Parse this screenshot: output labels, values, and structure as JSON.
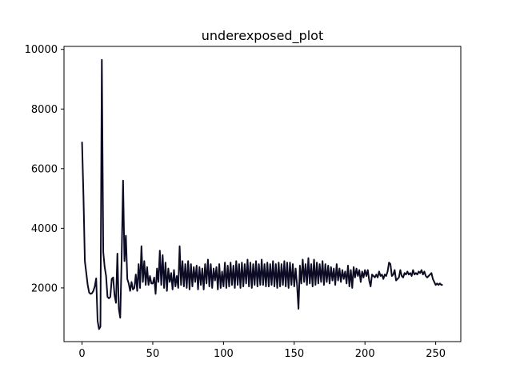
{
  "chart_data": {
    "type": "line",
    "title": "underexposed_plot",
    "xlabel": "",
    "ylabel": "",
    "xlim": [
      -12.75,
      267.75
    ],
    "ylim": [
      200,
      10100
    ],
    "x_ticks": [
      0,
      50,
      100,
      150,
      200,
      250
    ],
    "y_ticks": [
      2000,
      4000,
      6000,
      8000,
      10000
    ],
    "grid": false,
    "legend": "none",
    "series": [
      {
        "color": "#0b0b24",
        "points": [
          [
            0,
            6900
          ],
          [
            1,
            5100
          ],
          [
            2,
            2900
          ],
          [
            3,
            2500
          ],
          [
            4,
            2100
          ],
          [
            5,
            1850
          ],
          [
            6,
            1800
          ],
          [
            7,
            1820
          ],
          [
            8,
            1900
          ],
          [
            9,
            2050
          ],
          [
            10,
            2320
          ],
          [
            11,
            900
          ],
          [
            12,
            620
          ],
          [
            13,
            700
          ],
          [
            14,
            9650
          ],
          [
            15,
            3200
          ],
          [
            16,
            2700
          ],
          [
            17,
            2400
          ],
          [
            18,
            1700
          ],
          [
            19,
            1650
          ],
          [
            20,
            1700
          ],
          [
            21,
            2300
          ],
          [
            22,
            2350
          ],
          [
            23,
            1750
          ],
          [
            24,
            1500
          ],
          [
            25,
            3150
          ],
          [
            26,
            1300
          ],
          [
            27,
            1000
          ],
          [
            28,
            3000
          ],
          [
            29,
            5600
          ],
          [
            30,
            2900
          ],
          [
            31,
            3750
          ],
          [
            32,
            2300
          ],
          [
            33,
            2150
          ],
          [
            34,
            1900
          ],
          [
            35,
            2200
          ],
          [
            36,
            1950
          ],
          [
            37,
            2000
          ],
          [
            38,
            2450
          ],
          [
            39,
            1900
          ],
          [
            40,
            2800
          ],
          [
            41,
            2000
          ],
          [
            42,
            3400
          ],
          [
            43,
            2200
          ],
          [
            44,
            2900
          ],
          [
            45,
            2100
          ],
          [
            46,
            2700
          ],
          [
            47,
            2100
          ],
          [
            48,
            2400
          ],
          [
            49,
            2150
          ],
          [
            50,
            2150
          ],
          [
            51,
            2350
          ],
          [
            52,
            1800
          ],
          [
            53,
            2650
          ],
          [
            54,
            2200
          ],
          [
            55,
            3250
          ],
          [
            56,
            2100
          ],
          [
            57,
            3100
          ],
          [
            58,
            2000
          ],
          [
            59,
            2850
          ],
          [
            60,
            1900
          ],
          [
            61,
            2650
          ],
          [
            62,
            2200
          ],
          [
            63,
            2500
          ],
          [
            64,
            1950
          ],
          [
            65,
            2600
          ],
          [
            66,
            2050
          ],
          [
            67,
            2400
          ],
          [
            68,
            2000
          ],
          [
            69,
            3400
          ],
          [
            70,
            2100
          ],
          [
            71,
            2900
          ],
          [
            72,
            2050
          ],
          [
            73,
            2800
          ],
          [
            74,
            2000
          ],
          [
            75,
            2900
          ],
          [
            76,
            1950
          ],
          [
            77,
            2800
          ],
          [
            78,
            2050
          ],
          [
            79,
            2700
          ],
          [
            80,
            2200
          ],
          [
            81,
            2750
          ],
          [
            82,
            1950
          ],
          [
            83,
            2700
          ],
          [
            84,
            2100
          ],
          [
            85,
            2650
          ],
          [
            86,
            1950
          ],
          [
            87,
            2800
          ],
          [
            88,
            2150
          ],
          [
            89,
            2950
          ],
          [
            90,
            2050
          ],
          [
            91,
            2800
          ],
          [
            92,
            2000
          ],
          [
            93,
            2650
          ],
          [
            94,
            2250
          ],
          [
            95,
            2700
          ],
          [
            96,
            1950
          ],
          [
            97,
            2800
          ],
          [
            98,
            2000
          ],
          [
            99,
            2550
          ],
          [
            100,
            2050
          ],
          [
            101,
            2850
          ],
          [
            102,
            2000
          ],
          [
            103,
            2750
          ],
          [
            104,
            2050
          ],
          [
            105,
            2850
          ],
          [
            106,
            2100
          ],
          [
            107,
            2750
          ],
          [
            108,
            2000
          ],
          [
            109,
            2900
          ],
          [
            110,
            2100
          ],
          [
            111,
            2800
          ],
          [
            112,
            2000
          ],
          [
            113,
            2850
          ],
          [
            114,
            2050
          ],
          [
            115,
            2800
          ],
          [
            116,
            2150
          ],
          [
            117,
            2950
          ],
          [
            118,
            2050
          ],
          [
            119,
            2850
          ],
          [
            120,
            2000
          ],
          [
            121,
            2800
          ],
          [
            122,
            2100
          ],
          [
            123,
            2900
          ],
          [
            124,
            2050
          ],
          [
            125,
            2800
          ],
          [
            126,
            2100
          ],
          [
            127,
            2950
          ],
          [
            128,
            2100
          ],
          [
            129,
            2800
          ],
          [
            130,
            2050
          ],
          [
            131,
            2850
          ],
          [
            132,
            2050
          ],
          [
            133,
            2800
          ],
          [
            134,
            2100
          ],
          [
            135,
            2900
          ],
          [
            136,
            2050
          ],
          [
            137,
            2800
          ],
          [
            138,
            2000
          ],
          [
            139,
            2850
          ],
          [
            140,
            2050
          ],
          [
            141,
            2800
          ],
          [
            142,
            2100
          ],
          [
            143,
            2900
          ],
          [
            144,
            2050
          ],
          [
            145,
            2850
          ],
          [
            146,
            2000
          ],
          [
            147,
            2850
          ],
          [
            148,
            2100
          ],
          [
            149,
            2800
          ],
          [
            150,
            2050
          ],
          [
            151,
            2650
          ],
          [
            152,
            2100
          ],
          [
            153,
            1300
          ],
          [
            154,
            2750
          ],
          [
            155,
            2150
          ],
          [
            156,
            2950
          ],
          [
            157,
            2200
          ],
          [
            158,
            2800
          ],
          [
            159,
            2100
          ],
          [
            160,
            3000
          ],
          [
            161,
            2150
          ],
          [
            162,
            2800
          ],
          [
            163,
            2050
          ],
          [
            164,
            2950
          ],
          [
            165,
            2100
          ],
          [
            166,
            2850
          ],
          [
            167,
            2150
          ],
          [
            168,
            2800
          ],
          [
            169,
            2200
          ],
          [
            170,
            2900
          ],
          [
            171,
            2100
          ],
          [
            172,
            2800
          ],
          [
            173,
            2200
          ],
          [
            174,
            2750
          ],
          [
            175,
            2150
          ],
          [
            176,
            2700
          ],
          [
            177,
            2250
          ],
          [
            178,
            2650
          ],
          [
            179,
            2100
          ],
          [
            180,
            2800
          ],
          [
            181,
            2250
          ],
          [
            182,
            2650
          ],
          [
            183,
            2200
          ],
          [
            184,
            2600
          ],
          [
            185,
            2300
          ],
          [
            186,
            2550
          ],
          [
            187,
            2150
          ],
          [
            188,
            2750
          ],
          [
            189,
            2050
          ],
          [
            190,
            2600
          ],
          [
            191,
            2000
          ],
          [
            192,
            2700
          ],
          [
            193,
            2350
          ],
          [
            194,
            2650
          ],
          [
            195,
            2400
          ],
          [
            196,
            2600
          ],
          [
            197,
            2200
          ],
          [
            198,
            2550
          ],
          [
            199,
            2350
          ],
          [
            200,
            2600
          ],
          [
            201,
            2400
          ],
          [
            202,
            2600
          ],
          [
            203,
            2250
          ],
          [
            204,
            2050
          ],
          [
            205,
            2450
          ],
          [
            206,
            2400
          ],
          [
            207,
            2350
          ],
          [
            208,
            2450
          ],
          [
            209,
            2350
          ],
          [
            210,
            2550
          ],
          [
            211,
            2400
          ],
          [
            212,
            2450
          ],
          [
            213,
            2300
          ],
          [
            214,
            2450
          ],
          [
            215,
            2400
          ],
          [
            216,
            2550
          ],
          [
            217,
            2850
          ],
          [
            218,
            2800
          ],
          [
            219,
            2400
          ],
          [
            220,
            2450
          ],
          [
            221,
            2600
          ],
          [
            222,
            2250
          ],
          [
            223,
            2300
          ],
          [
            224,
            2350
          ],
          [
            225,
            2600
          ],
          [
            226,
            2400
          ],
          [
            227,
            2350
          ],
          [
            228,
            2500
          ],
          [
            229,
            2450
          ],
          [
            230,
            2550
          ],
          [
            231,
            2450
          ],
          [
            232,
            2500
          ],
          [
            233,
            2400
          ],
          [
            234,
            2600
          ],
          [
            235,
            2450
          ],
          [
            236,
            2500
          ],
          [
            237,
            2450
          ],
          [
            238,
            2550
          ],
          [
            239,
            2500
          ],
          [
            240,
            2600
          ],
          [
            241,
            2450
          ],
          [
            242,
            2550
          ],
          [
            243,
            2400
          ],
          [
            244,
            2350
          ],
          [
            245,
            2400
          ],
          [
            246,
            2450
          ],
          [
            247,
            2500
          ],
          [
            248,
            2300
          ],
          [
            249,
            2200
          ],
          [
            250,
            2100
          ],
          [
            251,
            2150
          ],
          [
            252,
            2100
          ],
          [
            253,
            2150
          ],
          [
            254,
            2100
          ],
          [
            255,
            2100
          ]
        ]
      }
    ]
  }
}
